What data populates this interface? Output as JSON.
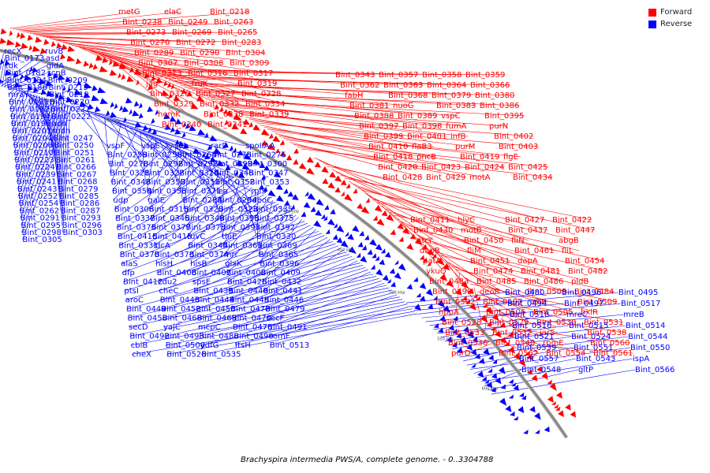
{
  "legend": {
    "forward_label": "Forward",
    "reverse_label": "Reverse",
    "forward_color": "#ff0000",
    "reverse_color": "#0000ff"
  },
  "caption": "Brachyspira intermedia PWS/A, complete genome. - 0..3304788",
  "scale_marks": [
    "200 kbp",
    "250 kbp",
    "300 kbp",
    "350 kbp",
    "400 kbp",
    "450 kbp",
    "500 kbp",
    "550 kbp",
    "600 kbp"
  ],
  "labels_forward_left": [
    "metG",
    "elaC",
    "Bint_0218",
    "Bint_0238",
    "Bint_0249",
    "Bint_0263",
    "Bint_0273",
    "Bint_0269",
    "Bint_0265",
    "Bint_0270",
    "Bint_0272",
    "Bint_0283",
    "Bint_0289",
    "Bint_0290",
    "Bint_0304",
    "Bint_0307",
    "Bint_0308",
    "Bint_0309",
    "Bint_0313",
    "Bint_0316",
    "Bint_0317",
    "jag",
    "fruK",
    "Bint_0319",
    "Bint_0326",
    "Bint_0327",
    "Bint_0328",
    "Bint_0329",
    "Bint_0332",
    "Bint_0334",
    "hemK",
    "Bint_0338",
    "Bint_0339",
    "Bint_0340",
    "Bint_0341"
  ],
  "labels_forward_mid": [
    "Bint_0343",
    "Bint_0357",
    "Bint_0358",
    "Bint_0359",
    "Bint_0362",
    "Bint_0363",
    "Bint_0364",
    "Bint_0366",
    "fabH",
    "Bint_0368",
    "Bint_0379",
    "Bint_0380",
    "Bint_0381",
    "nuoG",
    "Bint_0383",
    "Bint_0386",
    "Bint_0388",
    "Bint_0389",
    "vspC",
    "Bint_0395",
    "Bint_0397",
    "Bint_0398",
    "fumA",
    "purN",
    "Bint_0399",
    "Bint_0401",
    "infB",
    "Bint_0402",
    "Bint_0410",
    "flaB3",
    "purM",
    "Bint_0403",
    "Bint_0418",
    "pncB",
    "Bint_0419",
    "flgE",
    "Bint_0420",
    "Bint_0423",
    "Bint_0424",
    "Bint_0425",
    "Bint_0428",
    "Bint_0429",
    "motA",
    "Bint_0434"
  ],
  "labels_forward_right": [
    "Bint_0411",
    "hlyC",
    "Bint_0427",
    "Bint_0422",
    "Bint_0430",
    "motB",
    "Bint_0437",
    "Bint_0447",
    "ntrY",
    "Bint_0450",
    "fliN",
    "abgB",
    "dapB",
    "fliM",
    "Bint_0461",
    "fliL",
    "patA",
    "Bint_0451",
    "dapA",
    "Bint_0454",
    "ykuQ",
    "Bint_0474",
    "Bint_0481",
    "Bint_0482",
    "Bint_0483",
    "Bint_0485",
    "Bint_0486",
    "pldB",
    "Bint_0498",
    "deoR",
    "Bint_0503",
    "Bint_0484",
    "Bint_0502",
    "Bint_0507",
    "aslB",
    "Bint_0509",
    "hppA",
    "Bint_0506",
    "Bint_0505",
    "hxlR",
    "Bint_0528",
    "Bint_0529",
    "Bint_0530",
    "Bint_0531",
    "Bint_0533",
    "Bint_0532",
    "iarS",
    "Bint_0538",
    "Bint_0536",
    "Bint_0540",
    "rpmE",
    "Bint_0560",
    "purD",
    "Bint_0562",
    "Bint_0554",
    "Bint_0561"
  ],
  "labels_reverse_left": [
    "recX",
    "ruvB",
    "Bint_0173",
    "asd",
    "tdk",
    "gidA",
    "Bint_0182",
    "scpB",
    "Bint_0184",
    "Bint_0209",
    "Bint_0186",
    "Bint_0215",
    "mraY",
    "Bint_0219",
    "Bint_0191",
    "Bint_0220",
    "Bint_0192",
    "Bint_0221",
    "Bint_0194",
    "Bint_0222",
    "Bint_0196",
    "adh",
    "Bint_0201",
    "mdh",
    "Bint_0204",
    "Bint_0247",
    "Bint_0206",
    "Bint_0250",
    "Bint_0210",
    "Bint_0251",
    "Bint_0223",
    "Bint_0261",
    "Bint_0224",
    "Bint_0266",
    "Bint_0239",
    "Bint_0267",
    "Bint_0241",
    "Bint_0268",
    "Bint_0243",
    "Bint_0279",
    "Bint_0252",
    "Bint_0285",
    "Bint_0254",
    "Bint_0286",
    "Bint_0262",
    "Bint_0287",
    "Bint_0291",
    "Bint_0293",
    "Bint_0295",
    "Bint_0296",
    "Bint_0298",
    "Bint_0303",
    "Bint_0305"
  ],
  "labels_reverse_mid": [
    "vspF",
    "vspE",
    "fab",
    "rarD",
    "spoIIAA",
    "Bint_0259",
    "Bint_0256",
    "Bint_0264",
    "Bint_0275",
    "Bint_0276",
    "Bint_0278",
    "Bint_0292",
    "Bint_0297",
    "Bint_0299",
    "Bint_0300",
    "Bint_0321",
    "Bint_0322",
    "Bint_0324",
    "Bint_0346",
    "Bint_0347",
    "Bint_0348",
    "Bint_0350",
    "Bint_0351",
    "Bint_0352",
    "Bint_0353",
    "Bint_0354",
    "Bint_0356",
    "Bint_0371",
    "lea",
    "rplS",
    "udp",
    "galE",
    "Bint_0284",
    "Bint_0294",
    "deoC",
    "Bint_0306",
    "Bint_0315",
    "Bint_0320",
    "Bint_0323",
    "Bint_0335",
    "Bint_0337",
    "Bint_0345",
    "Bint_0349",
    "Bint_0355",
    "Bint_0375",
    "Bint_0376",
    "Bint_0377",
    "Bint_0378",
    "Bint_0391",
    "Bint_0392",
    "Bint_0416",
    "Bint_0415",
    "ruvC",
    "thiE",
    "Bint_0330",
    "Bint_0331",
    "ldcA",
    "Bint_0344",
    "Bint_0361",
    "Bint_0369",
    "Bint_0370",
    "Bint_0373",
    "Bint_0374",
    "mrr",
    "Bint_0365",
    "alaS",
    "hisH",
    "hisB",
    "glxK",
    "Bint_0396",
    "dfp",
    "Bint_0406",
    "Bint_0407",
    "Bint_0408",
    "Bint_0409",
    "Bint_0412",
    "cdu2",
    "spsE",
    "Bint_0426",
    "Bint_0432",
    "ptsI",
    "cheC",
    "Bint_0439",
    "Bint_0440",
    "Bint_0441",
    "aroC",
    "Bint_0443",
    "Bint_0444",
    "Bint_0445",
    "Bint_0446",
    "Bint_0449",
    "Bint_0452",
    "Bint_0456",
    "Bint_0478",
    "Bint_0479",
    "Bint_0458",
    "Bint_0468",
    "Bint_0469",
    "Bint_0470",
    "secF",
    "secD",
    "yajC",
    "mcpC",
    "Bint_0475",
    "Bint_0491",
    "Bint_0492",
    "Bint_0493",
    "Bint_0488",
    "Bint_0490",
    "comF",
    "cbiB",
    "Bint_0500",
    "ydfG",
    "ftsH",
    "Bint_0513",
    "cheX",
    "Bint_0526",
    "Bint_0535"
  ],
  "labels_reverse_right": [
    "Bint_0480",
    "Bint_0496",
    "Bint_0495",
    "Bint_0494",
    "Bint_0497",
    "Bint_0517",
    "Bint_0518",
    "mreC",
    "mreB",
    "Bint_0516",
    "Bint_0515",
    "Bint_0514",
    "Bint_0521",
    "Bint_0524",
    "Bint_0544",
    "Bint_0539",
    "Bint_0551",
    "Bint_0550",
    "Bint_0557",
    "Bint_0543",
    "ispA",
    "Bint_0548",
    "gltP",
    "Bint_0566"
  ]
}
